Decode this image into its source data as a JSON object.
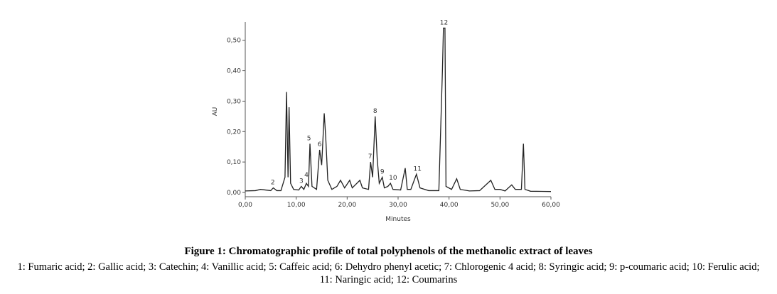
{
  "chart_data": {
    "type": "line",
    "y_label": "AU",
    "x_label": "Minutes",
    "caption_title": "Figure 1: Chromatographic profile of total polyphenols of the methanolic extract of leaves",
    "caption_text": "1: Fumaric acid; 2: Gallic acid; 3: Catechin; 4: Vanillic acid; 5: Caffeic acid; 6: Dehydro phenyl acetic; 7: Chlorogenic 4 acid; 8: Syringic acid; 9: p-coumaric acid; 10: Ferulic acid; 11: Naringic acid; 12: Coumarins",
    "color": "#222222",
    "xlim": [
      0,
      60
    ],
    "ylim": [
      0,
      0.56
    ],
    "xticks": [
      {
        "value": 0,
        "label": "0,00"
      },
      {
        "value": 10,
        "label": "10,00"
      },
      {
        "value": 20,
        "label": "20,00"
      },
      {
        "value": 30,
        "label": "30,00"
      },
      {
        "value": 40,
        "label": "40,00"
      },
      {
        "value": 50,
        "label": "50,00"
      },
      {
        "value": 60,
        "label": "60,00"
      }
    ],
    "yticks": [
      {
        "value": 0,
        "label": "0,00"
      },
      {
        "value": 0.1,
        "label": "0,10"
      },
      {
        "value": 0.2,
        "label": "0,20"
      },
      {
        "value": 0.3,
        "label": "0,30"
      },
      {
        "value": 0.4,
        "label": "0,40"
      },
      {
        "value": 0.5,
        "label": "0,50"
      }
    ],
    "x": [
      0,
      2,
      3,
      4,
      5,
      5.5,
      6.2,
      7,
      7.8,
      8.1,
      8.4,
      8.6,
      8.9,
      9.5,
      10.5,
      11,
      11.5,
      12,
      12.4,
      12.7,
      13.1,
      14,
      14.6,
      15,
      15.5,
      15.8,
      16.2,
      17,
      18,
      18.7,
      19.5,
      20.5,
      21,
      22.5,
      23,
      24.2,
      24.6,
      25,
      25.5,
      25.9,
      26.3,
      26.9,
      27.3,
      28,
      28.5,
      29,
      30.5,
      31.4,
      31.8,
      32.5,
      33.6,
      34.3,
      36,
      38,
      38.7,
      38.9,
      39.2,
      39.4,
      40.5,
      41.5,
      42.2,
      44,
      46,
      48.2,
      49,
      50,
      51,
      52.3,
      53,
      54.2,
      54.6,
      54.9,
      56,
      60
    ],
    "values": [
      0.005,
      0.006,
      0.01,
      0.008,
      0.006,
      0.015,
      0.006,
      0.006,
      0.05,
      0.33,
      0.05,
      0.28,
      0.03,
      0.01,
      0.008,
      0.02,
      0.01,
      0.03,
      0.02,
      0.16,
      0.02,
      0.01,
      0.14,
      0.09,
      0.26,
      0.18,
      0.04,
      0.01,
      0.02,
      0.04,
      0.015,
      0.04,
      0.015,
      0.04,
      0.015,
      0.01,
      0.1,
      0.05,
      0.25,
      0.11,
      0.03,
      0.05,
      0.015,
      0.02,
      0.03,
      0.01,
      0.008,
      0.08,
      0.01,
      0.01,
      0.06,
      0.015,
      0.006,
      0.006,
      0.4,
      0.54,
      0.54,
      0.02,
      0.01,
      0.045,
      0.01,
      0.005,
      0.006,
      0.04,
      0.01,
      0.01,
      0.005,
      0.025,
      0.01,
      0.01,
      0.16,
      0.01,
      0.004,
      0.003
    ],
    "annotations": [
      {
        "text": "2",
        "x": 5.4,
        "y": 0.015
      },
      {
        "text": "3",
        "x": 11,
        "y": 0.02
      },
      {
        "text": "4",
        "x": 12,
        "y": 0.04
      },
      {
        "text": "5",
        "x": 12.5,
        "y": 0.16
      },
      {
        "text": "6",
        "x": 14.6,
        "y": 0.14
      },
      {
        "text": "7",
        "x": 24.5,
        "y": 0.1
      },
      {
        "text": "8",
        "x": 25.5,
        "y": 0.25
      },
      {
        "text": "9",
        "x": 26.9,
        "y": 0.05
      },
      {
        "text": "10",
        "x": 29,
        "y": 0.03
      },
      {
        "text": "11",
        "x": 33.8,
        "y": 0.06
      },
      {
        "text": "12",
        "x": 39,
        "y": 0.54
      }
    ]
  }
}
